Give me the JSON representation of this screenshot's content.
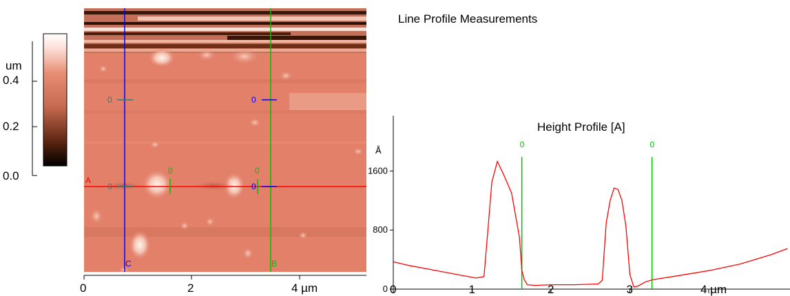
{
  "window": {
    "title": "Line Profile Measurements"
  },
  "colorbar": {
    "unit": "um",
    "ticks": [
      "0.4",
      "0.2",
      "0.0"
    ],
    "tick_values": [
      0.4,
      0.2,
      0.0
    ],
    "range": [
      0.0,
      0.5
    ],
    "colors": [
      "#000000",
      "#5a2410",
      "#c66a50",
      "#e88e74",
      "#fde2dc",
      "#ffffff"
    ]
  },
  "image": {
    "x_ticks": [
      "0",
      "2",
      "4 µm"
    ],
    "x_tick_values": [
      0,
      2,
      4
    ],
    "x_range": [
      0,
      5
    ],
    "base_color": "#e2806a",
    "line_a_label": "A",
    "line_c_label": "C",
    "line_b_label": "B",
    "line_a_color": "#ff0000",
    "line_c_color": "#0000ff",
    "line_b_color": "#00c000",
    "markers": [
      {
        "label": "0",
        "color": "#208080"
      },
      {
        "label": "0",
        "color": "#0000ff"
      },
      {
        "label": "0",
        "color": "#208080"
      },
      {
        "label": "0",
        "color": "#0000ff"
      },
      {
        "label": "0",
        "color": "#00c000"
      },
      {
        "label": "0",
        "color": "#00c000"
      }
    ]
  },
  "chart_data": {
    "type": "line",
    "title": "Height Profile [A]",
    "ylabel": "Å",
    "xlabel": "",
    "x_ticks": [
      "0",
      "1",
      "2",
      "3",
      "4 µm"
    ],
    "x_tick_values": [
      0,
      1,
      2,
      3,
      4
    ],
    "y_ticks": [
      "1600",
      "800",
      "0"
    ],
    "y_tick_values": [
      1600,
      800,
      0
    ],
    "xlim": [
      0,
      5
    ],
    "ylim": [
      0,
      2350
    ],
    "series": [
      {
        "color": "#ff0000",
        "x": [
          0,
          0.2,
          0.5,
          0.8,
          1.05,
          1.15,
          1.2,
          1.25,
          1.32,
          1.4,
          1.5,
          1.6,
          1.63,
          1.66,
          1.7,
          1.8,
          2.0,
          2.3,
          2.6,
          2.65,
          2.7,
          2.75,
          2.8,
          2.85,
          2.9,
          2.95,
          3.0,
          3.05,
          3.1,
          3.2,
          3.3,
          3.6,
          4.0,
          4.4,
          4.8,
          5.0
        ],
        "y": [
          370,
          320,
          260,
          200,
          150,
          170,
          800,
          1450,
          1730,
          1550,
          1300,
          700,
          260,
          130,
          60,
          50,
          60,
          60,
          70,
          120,
          900,
          1200,
          1370,
          1350,
          1200,
          850,
          200,
          30,
          40,
          100,
          130,
          180,
          250,
          340,
          470,
          550
        ]
      }
    ],
    "cursors": [
      {
        "label": "0",
        "x": 1.63,
        "color": "#00c000"
      },
      {
        "label": "0",
        "x": 3.28,
        "color": "#00c000"
      }
    ]
  }
}
